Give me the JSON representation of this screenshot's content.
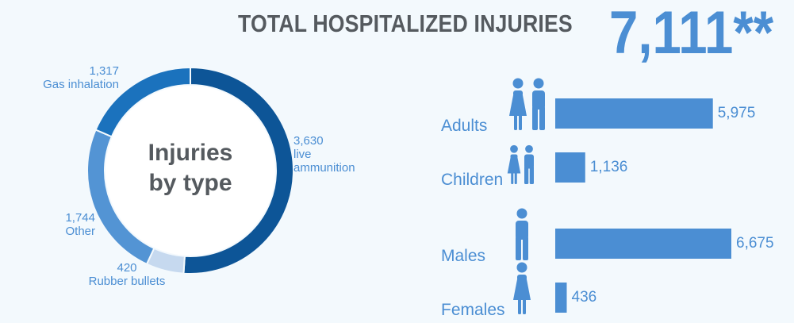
{
  "header": {
    "title": "TOTAL HOSPITALIZED INJURIES",
    "total": "7,111**"
  },
  "chart_data": [
    {
      "type": "pie",
      "center_label": [
        "Injuries",
        "by type"
      ],
      "slices": [
        {
          "label": [
            "3,630",
            "live",
            "ammunition"
          ],
          "value": 3630,
          "color": "#0d5597"
        },
        {
          "label": [
            "420",
            "Rubber bullets"
          ],
          "value": 420,
          "color": "#c6d9ef"
        },
        {
          "label": [
            "1,744",
            "Other"
          ],
          "value": 1744,
          "color": "#5394d4"
        },
        {
          "label": [
            "1,317",
            "Gas inhalation"
          ],
          "value": 1317,
          "color": "#1b72bd"
        }
      ]
    },
    {
      "type": "bar",
      "orientation": "horizontal",
      "categories": [
        "Adults",
        "Children",
        "Males",
        "Females"
      ],
      "values": [
        5975,
        1136,
        6675,
        436
      ],
      "value_labels": [
        "5,975",
        "1,136",
        "6,675",
        "436"
      ],
      "icons": [
        "adults-icon",
        "children-icon",
        "male-icon",
        "female-icon"
      ],
      "color": "#4b8ed3"
    }
  ]
}
